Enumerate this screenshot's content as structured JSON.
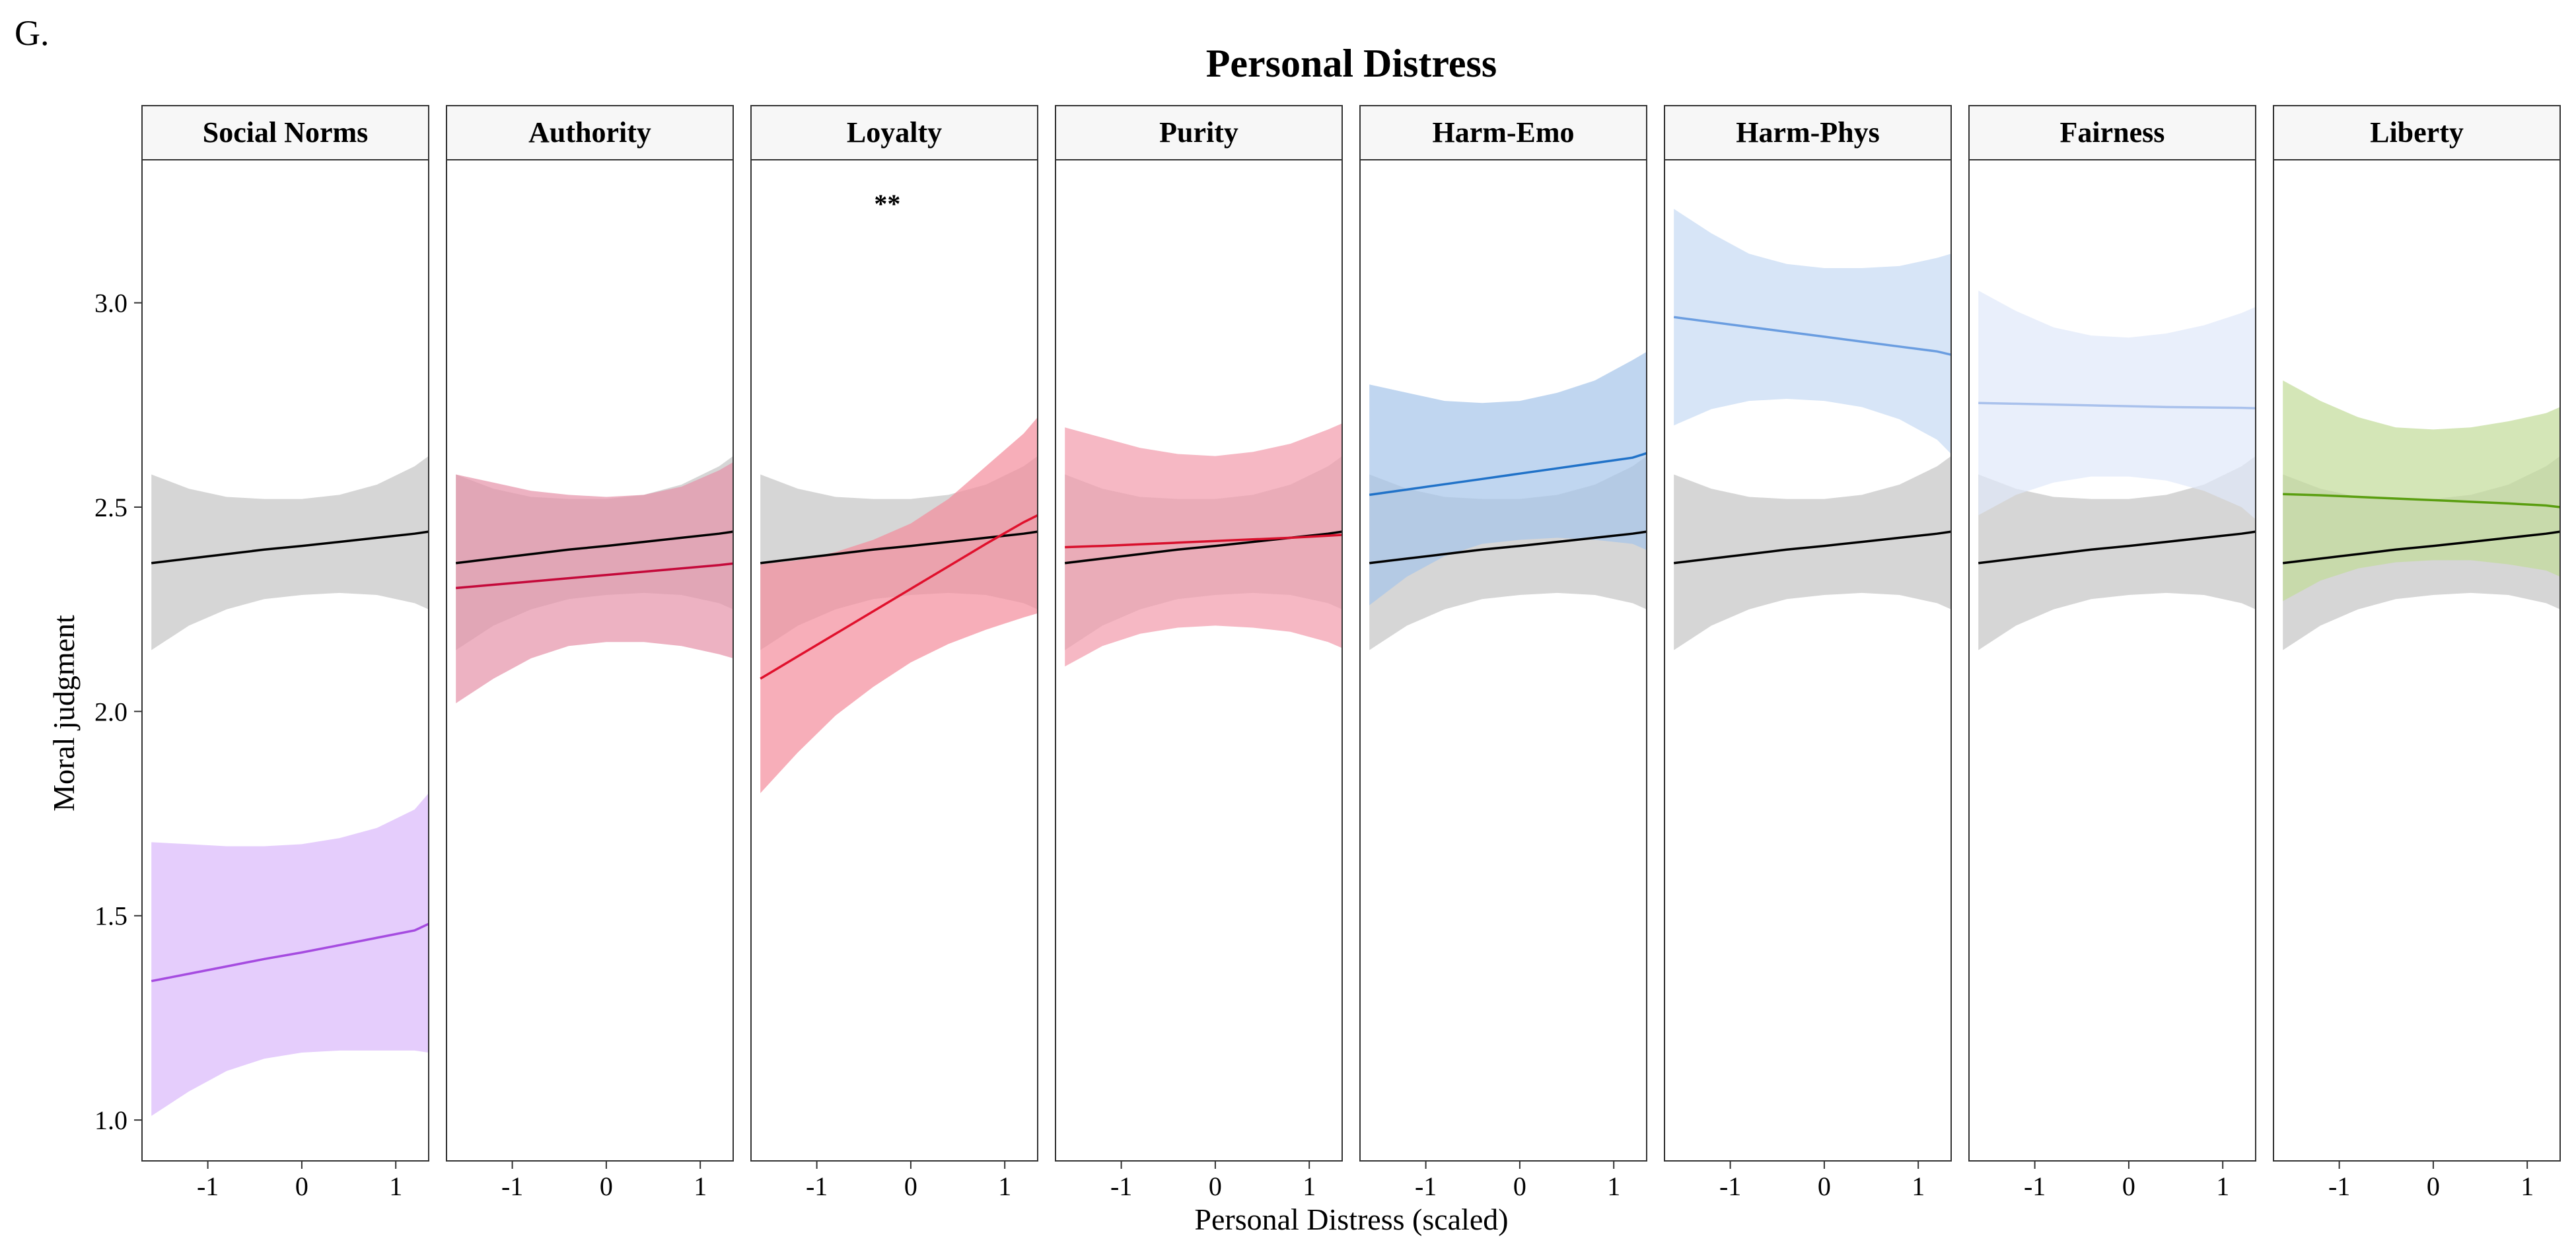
{
  "panel_letter": "G.",
  "chart_data": {
    "type": "line",
    "title": "Personal Distress",
    "xlabel": "Personal Distress (scaled)",
    "ylabel": "Moral judgment",
    "xlim": [
      -1.7,
      1.35
    ],
    "ylim": [
      0.9,
      3.35
    ],
    "x_ticks": [
      -1,
      0,
      1
    ],
    "x_tick_labels": [
      "-1",
      "0",
      "1"
    ],
    "y_ticks": [
      1.0,
      1.5,
      2.0,
      2.5,
      3.0
    ],
    "y_tick_labels": [
      "1.0",
      "1.5",
      "2.0",
      "2.5",
      "3.0"
    ],
    "grid": false,
    "x": [
      -1.6,
      -1.2,
      -0.8,
      -0.4,
      0,
      0.4,
      0.8,
      1.2,
      1.35
    ],
    "reference": {
      "color": "#000000",
      "band_color": "#d6d6d6",
      "fit": [
        2.363,
        2.374,
        2.385,
        2.396,
        2.405,
        2.415,
        2.425,
        2.435,
        2.44
      ],
      "lower": [
        2.15,
        2.21,
        2.25,
        2.275,
        2.285,
        2.29,
        2.285,
        2.265,
        2.25
      ],
      "upper": [
        2.58,
        2.545,
        2.525,
        2.52,
        2.52,
        2.53,
        2.555,
        2.6,
        2.625
      ]
    },
    "facets": [
      {
        "label": "Social Norms",
        "annotation": "",
        "color": "#a54be0",
        "band_color": "#dab8fb",
        "fit": [
          1.34,
          1.358,
          1.376,
          1.394,
          1.41,
          1.428,
          1.446,
          1.464,
          1.48
        ],
        "lower": [
          1.01,
          1.07,
          1.12,
          1.15,
          1.165,
          1.17,
          1.17,
          1.17,
          1.165
        ],
        "upper": [
          1.68,
          1.675,
          1.67,
          1.67,
          1.675,
          1.69,
          1.715,
          1.76,
          1.8
        ]
      },
      {
        "label": "Authority",
        "annotation": "",
        "color": "#c4093a",
        "band_color": "#e592a8",
        "fit": [
          2.302,
          2.31,
          2.318,
          2.326,
          2.334,
          2.342,
          2.35,
          2.358,
          2.362
        ],
        "lower": [
          2.02,
          2.08,
          2.13,
          2.16,
          2.17,
          2.17,
          2.16,
          2.14,
          2.13
        ],
        "upper": [
          2.58,
          2.56,
          2.54,
          2.53,
          2.525,
          2.53,
          2.55,
          2.59,
          2.61
        ]
      },
      {
        "label": "Loyalty",
        "annotation": "**",
        "color": "#e0102c",
        "band_color": "#f48c9b",
        "fit": [
          2.08,
          2.135,
          2.19,
          2.245,
          2.3,
          2.355,
          2.41,
          2.463,
          2.48
        ],
        "lower": [
          1.8,
          1.9,
          1.99,
          2.06,
          2.12,
          2.165,
          2.2,
          2.23,
          2.24
        ],
        "upper": [
          2.36,
          2.37,
          2.39,
          2.42,
          2.46,
          2.52,
          2.6,
          2.68,
          2.72
        ]
      },
      {
        "label": "Purity",
        "annotation": "",
        "color": "#d8102c",
        "band_color": "#f29aab",
        "fit": [
          2.402,
          2.405,
          2.409,
          2.413,
          2.417,
          2.421,
          2.425,
          2.43,
          2.432
        ],
        "lower": [
          2.11,
          2.16,
          2.19,
          2.205,
          2.21,
          2.205,
          2.195,
          2.17,
          2.155
        ],
        "upper": [
          2.695,
          2.67,
          2.645,
          2.63,
          2.625,
          2.635,
          2.655,
          2.69,
          2.705
        ]
      },
      {
        "label": "Harm-Emo",
        "annotation": "",
        "color": "#2072c8",
        "band_color": "#a5c5ea",
        "fit": [
          2.53,
          2.543,
          2.556,
          2.569,
          2.582,
          2.595,
          2.608,
          2.621,
          2.632
        ],
        "lower": [
          2.26,
          2.33,
          2.38,
          2.41,
          2.42,
          2.425,
          2.42,
          2.41,
          2.395
        ],
        "upper": [
          2.8,
          2.78,
          2.76,
          2.755,
          2.76,
          2.78,
          2.81,
          2.86,
          2.88
        ]
      },
      {
        "label": "Harm-Phys",
        "annotation": "",
        "color": "#6a9de0",
        "band_color": "#c6daf4",
        "fit": [
          2.965,
          2.953,
          2.941,
          2.929,
          2.917,
          2.905,
          2.893,
          2.881,
          2.873
        ],
        "lower": [
          2.7,
          2.74,
          2.76,
          2.765,
          2.76,
          2.745,
          2.715,
          2.665,
          2.63
        ],
        "upper": [
          3.23,
          3.17,
          3.12,
          3.095,
          3.085,
          3.085,
          3.09,
          3.11,
          3.12
        ]
      },
      {
        "label": "Fairness",
        "annotation": "",
        "color": "#a9c1ec",
        "band_color": "#dfe8f9",
        "fit": [
          2.755,
          2.753,
          2.751,
          2.749,
          2.747,
          2.745,
          2.744,
          2.743,
          2.742
        ],
        "lower": [
          2.48,
          2.53,
          2.56,
          2.575,
          2.575,
          2.565,
          2.54,
          2.5,
          2.47
        ],
        "upper": [
          3.03,
          2.98,
          2.94,
          2.92,
          2.915,
          2.925,
          2.945,
          2.975,
          2.99
        ]
      },
      {
        "label": "Liberty",
        "annotation": "",
        "color": "#5a9e10",
        "band_color": "#c2dc98",
        "fit": [
          2.532,
          2.529,
          2.525,
          2.521,
          2.517,
          2.513,
          2.509,
          2.504,
          2.5
        ],
        "lower": [
          2.27,
          2.32,
          2.35,
          2.365,
          2.37,
          2.37,
          2.36,
          2.345,
          2.33
        ],
        "upper": [
          2.81,
          2.76,
          2.72,
          2.695,
          2.69,
          2.695,
          2.71,
          2.73,
          2.745
        ]
      }
    ]
  }
}
